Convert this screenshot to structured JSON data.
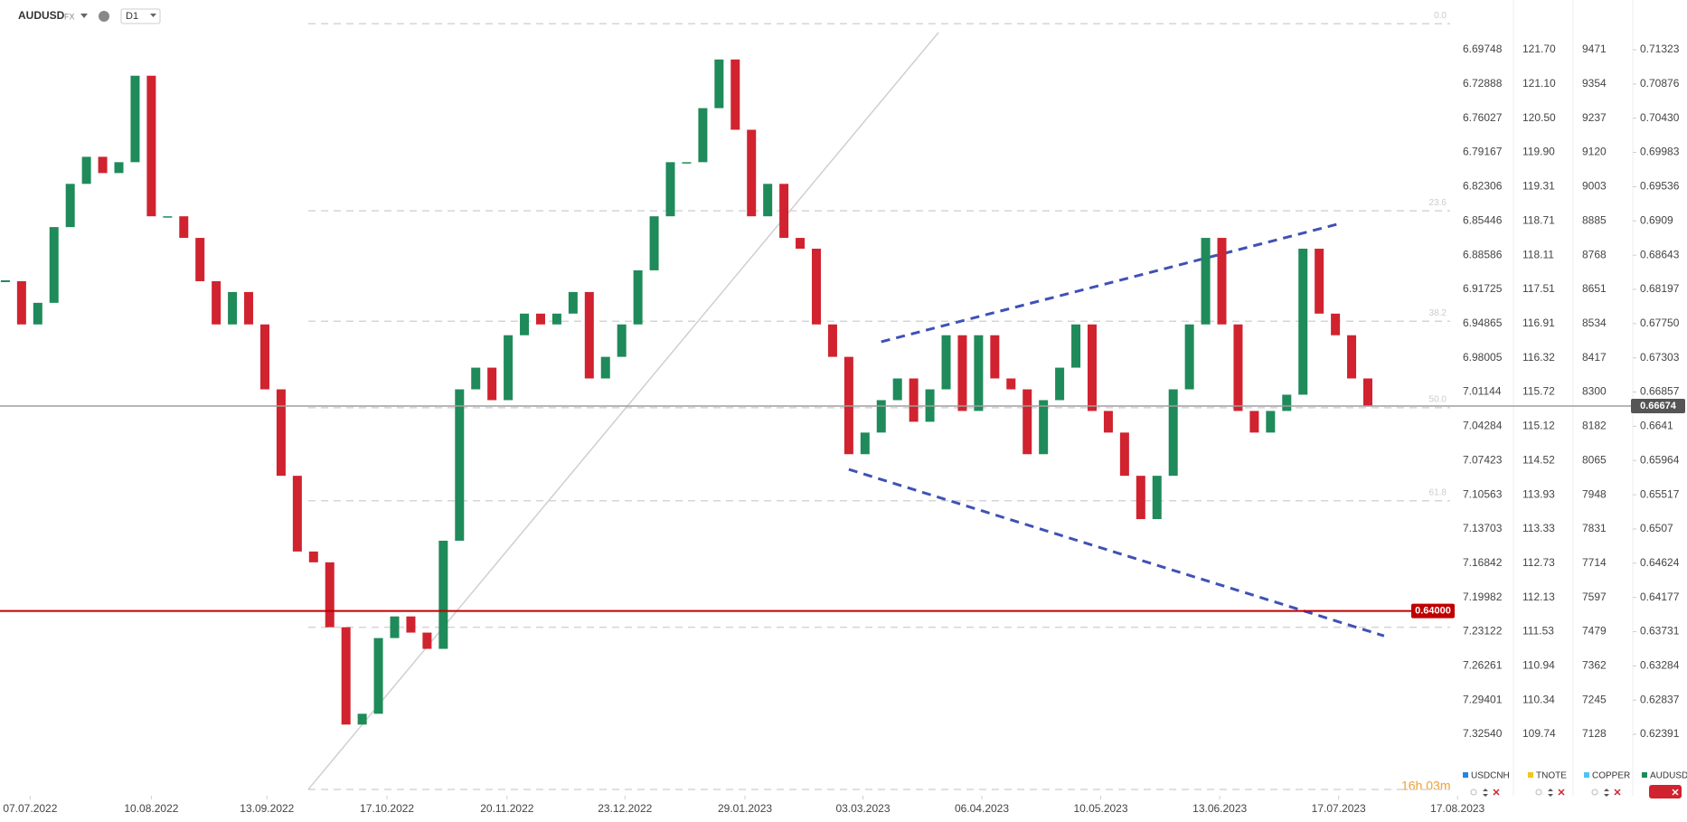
{
  "header": {
    "symbol": "AUDUSD",
    "market": "FX",
    "interval": "D1"
  },
  "countdown": "16h 03m",
  "chart_data": {
    "type": "candlestick",
    "up_color": "#1f8a5a",
    "down_color": "#d0232f",
    "values": [
      0.68303,
      0.67739,
      0.68021,
      0.69009,
      0.69573,
      0.69926,
      0.69714,
      0.69856,
      0.70984,
      0.6915,
      0.6915,
      0.68868,
      0.68303,
      0.67739,
      0.68162,
      0.67739,
      0.66892,
      0.65764,
      0.64776,
      0.64635,
      0.63788,
      0.62518,
      0.62659,
      0.63647,
      0.63929,
      0.63718,
      0.63506,
      0.64917,
      0.66892,
      0.67175,
      0.66751,
      0.67598,
      0.6788,
      0.67739,
      0.6788,
      0.68162,
      0.67034,
      0.67316,
      0.67739,
      0.68445,
      0.6915,
      0.69856,
      0.69856,
      0.70561,
      0.71196,
      0.70279,
      0.6915,
      0.69573,
      0.68868,
      0.68727,
      0.67739,
      0.67316,
      0.66046,
      0.66328,
      0.66751,
      0.67034,
      0.66469,
      0.66892,
      0.67598,
      0.6661,
      0.67598,
      0.67034,
      0.66892,
      0.66046,
      0.66751,
      0.67175,
      0.67739,
      0.6661,
      0.66328,
      0.65764,
      0.65199,
      0.65764,
      0.66892,
      0.67739,
      0.68868,
      0.67739,
      0.6661,
      0.66328,
      0.6661,
      0.66822,
      0.68727,
      0.6788,
      0.67598,
      0.67034,
      0.66674
    ],
    "xlim": [
      -0.33,
      92.64
    ],
    "xticks": [
      {
        "value": 1.53,
        "label": "07.07.2022"
      },
      {
        "value": 9,
        "label": "10.08.2022"
      },
      {
        "value": 16.13,
        "label": "13.09.2022"
      },
      {
        "value": 23.53,
        "label": "17.10.2022"
      },
      {
        "value": 30.93,
        "label": "20.11.2022"
      },
      {
        "value": 38.2,
        "label": "23.12.2022"
      },
      {
        "value": 45.6,
        "label": "29.01.2023"
      },
      {
        "value": 52.87,
        "label": "03.03.2023"
      },
      {
        "value": 60.2,
        "label": "06.04.2023"
      },
      {
        "value": 67.53,
        "label": "10.05.2023"
      },
      {
        "value": 74.87,
        "label": "13.06.2023"
      },
      {
        "value": 82.2,
        "label": "17.07.2023"
      },
      {
        "value": 89.53,
        "label": "17.08.2023"
      }
    ],
    "ylim": [
      0.61589,
      0.71972
    ],
    "yticks": [
      0.71323,
      0.70876,
      {
        "value": 0.7043,
        "label": "0.70430"
      },
      0.69983,
      0.69536,
      0.6909,
      0.68643,
      0.68197,
      {
        "value": 0.6775,
        "label": "0.67750"
      },
      0.67303,
      0.66857,
      0.6641,
      0.65964,
      0.65517,
      0.6507,
      0.64624,
      0.64177,
      0.63731,
      0.63284,
      0.62837,
      0.62391
    ],
    "instruments": [
      {
        "name": "USDCNH",
        "color": "#1e88e5",
        "tick_labels": [
          "6.69748",
          "6.72888",
          "6.76027",
          "6.79167",
          "6.82306",
          "6.85446",
          "6.88586",
          "6.91725",
          "6.94865",
          "6.98005",
          "7.01144",
          "7.04284",
          "7.07423",
          "7.10563",
          "7.13703",
          "7.16842",
          "7.19982",
          "7.23122",
          "7.26261",
          "7.29401",
          "7.32540"
        ]
      },
      {
        "name": "TNOTE",
        "color": "#f5c518",
        "tick_labels": [
          "121.70",
          "121.10",
          "120.50",
          "119.90",
          "119.31",
          "118.71",
          "118.11",
          "117.51",
          "116.91",
          "116.32",
          "115.72",
          "115.12",
          "114.52",
          "113.93",
          "113.33",
          "112.73",
          "112.13",
          "111.53",
          "110.94",
          "110.34",
          "109.74"
        ]
      },
      {
        "name": "COPPER",
        "color": "#4fc3f7",
        "tick_labels": [
          "9471",
          "9354",
          "9237",
          "9120",
          "9003",
          "8885",
          "8768",
          "8651",
          "8534",
          "8417",
          "8300",
          "8182",
          "8065",
          "7948",
          "7831",
          "7714",
          "7597",
          "7479",
          "7362",
          "7245",
          "7128"
        ]
      },
      {
        "name": "AUDUSD",
        "color": "#1f8a5a"
      }
    ],
    "fib_levels": [
      {
        "label": "0.0",
        "value": 0.71662
      },
      {
        "label": "23.6",
        "value": 0.69221
      },
      {
        "label": "38.2",
        "value": 0.67781
      },
      {
        "label": "50.0",
        "value": 0.66652
      },
      {
        "label": "61.8",
        "value": 0.65439
      },
      {
        "value": 0.63788
      },
      {
        "value": 0.61671
      }
    ],
    "price_lines": [
      {
        "price": 0.66674,
        "color": "#9e9e9e",
        "label_color": "#555555"
      },
      {
        "price": {
          "value": 0.64,
          "label": "0.64000"
        },
        "color": "#c00000",
        "label_color": "#c00000"
      }
    ],
    "trendlines": [
      {
        "x": [
          18.67,
          57.53
        ],
        "y": [
          0.61671,
          0.71549
        ],
        "color": "#cfcfcf",
        "dashed": false
      },
      {
        "x": [
          54,
          82.2
        ],
        "y": [
          0.67513,
          0.69051
        ],
        "color": "#3f51b5",
        "dashed": true
      },
      {
        "x": [
          52,
          85
        ],
        "y": [
          0.65848,
          0.63675
        ],
        "color": "#3f51b5",
        "dashed": true
      }
    ]
  }
}
